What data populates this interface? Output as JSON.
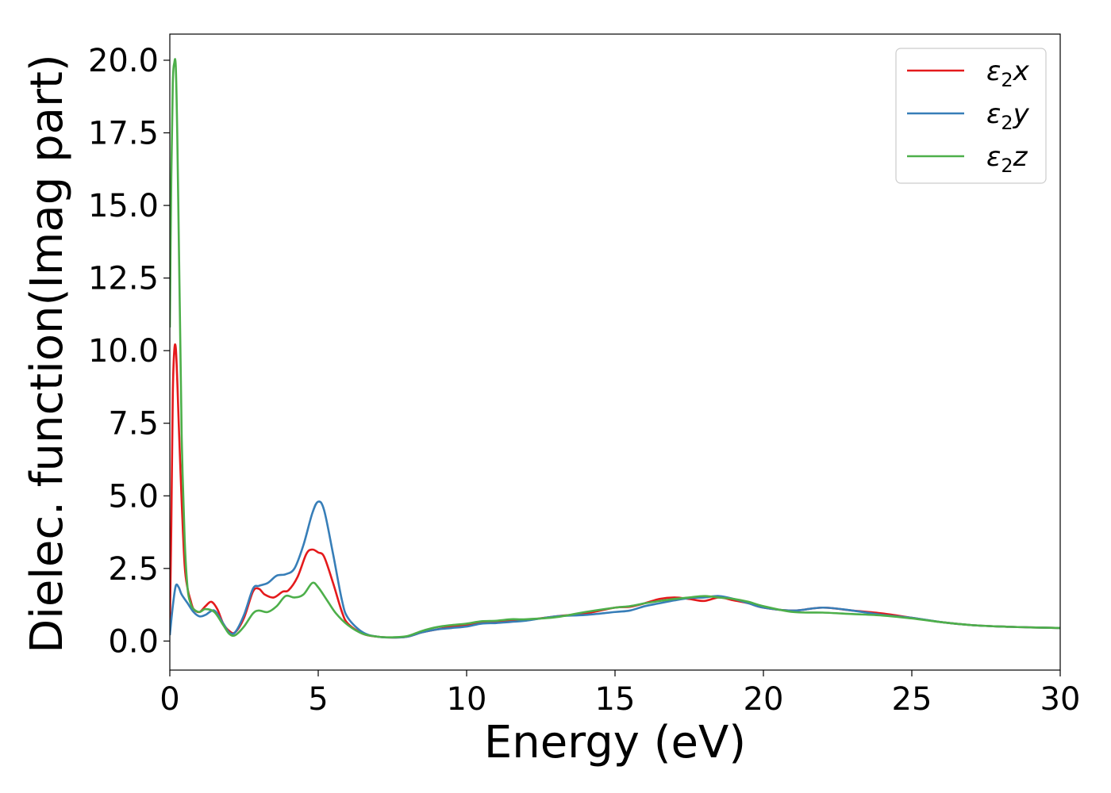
{
  "chart_data": {
    "type": "line",
    "title": "",
    "xlabel": "Energy (eV)",
    "ylabel": "Dielec. function(Imag part)",
    "xlim": [
      0,
      30
    ],
    "ylim": [
      -1.0,
      20.9
    ],
    "x_ticks": [
      0,
      5,
      10,
      15,
      20,
      25,
      30
    ],
    "x_tick_labels": [
      "0",
      "5",
      "10",
      "15",
      "20",
      "25",
      "30"
    ],
    "y_ticks": [
      0.0,
      2.5,
      5.0,
      7.5,
      10.0,
      12.5,
      15.0,
      17.5,
      20.0
    ],
    "y_tick_labels": [
      "0.0",
      "2.5",
      "5.0",
      "7.5",
      "10.0",
      "12.5",
      "15.0",
      "17.5",
      "20.0"
    ],
    "grid": false,
    "legend_position": "top-right",
    "series": [
      {
        "name": "ε₂x",
        "color": "#e41a1c",
        "x": [
          0,
          0.05,
          0.1,
          0.15,
          0.2,
          0.25,
          0.3,
          0.4,
          0.5,
          0.6,
          0.7,
          0.8,
          1.0,
          1.2,
          1.4,
          1.6,
          1.8,
          2.0,
          2.2,
          2.5,
          2.8,
          3.0,
          3.2,
          3.5,
          3.8,
          4.0,
          4.3,
          4.6,
          4.8,
          5.0,
          5.2,
          5.5,
          5.8,
          6.0,
          6.5,
          7.0,
          7.5,
          8.0,
          8.5,
          9.0,
          9.5,
          10.0,
          10.5,
          11.0,
          11.5,
          12.0,
          13.0,
          14.0,
          15.0,
          15.5,
          16.0,
          16.5,
          17.0,
          17.5,
          18.0,
          18.5,
          19.0,
          19.5,
          20.0,
          21.0,
          22.0,
          23.0,
          24.0,
          25.0,
          26.0,
          27.0,
          28.0,
          29.0,
          30.0
        ],
        "y": [
          0.5,
          4.0,
          8.5,
          10.0,
          10.1,
          9.0,
          7.5,
          4.8,
          2.6,
          1.8,
          1.4,
          1.1,
          1.0,
          1.2,
          1.35,
          1.1,
          0.6,
          0.35,
          0.3,
          0.8,
          1.7,
          1.8,
          1.6,
          1.5,
          1.7,
          1.75,
          2.2,
          3.0,
          3.15,
          3.05,
          2.9,
          2.0,
          1.0,
          0.6,
          0.25,
          0.15,
          0.12,
          0.15,
          0.3,
          0.4,
          0.5,
          0.55,
          0.62,
          0.65,
          0.7,
          0.72,
          0.85,
          0.95,
          1.15,
          1.18,
          1.3,
          1.45,
          1.5,
          1.45,
          1.38,
          1.5,
          1.4,
          1.3,
          1.15,
          1.05,
          1.15,
          1.05,
          0.95,
          0.8,
          0.65,
          0.55,
          0.5,
          0.47,
          0.45
        ]
      },
      {
        "name": "ε₂y",
        "color": "#377eb8",
        "x": [
          0,
          0.1,
          0.2,
          0.3,
          0.4,
          0.6,
          0.8,
          1.0,
          1.2,
          1.5,
          1.8,
          2.0,
          2.2,
          2.5,
          2.8,
          3.0,
          3.3,
          3.6,
          3.9,
          4.2,
          4.5,
          4.8,
          5.0,
          5.2,
          5.5,
          5.8,
          6.0,
          6.5,
          7.0,
          7.5,
          8.0,
          8.5,
          9.0,
          9.5,
          10.0,
          10.5,
          11.0,
          11.5,
          12.0,
          13.0,
          14.0,
          15.0,
          15.5,
          16.0,
          16.5,
          17.0,
          17.5,
          18.0,
          18.5,
          19.0,
          19.5,
          20.0,
          21.0,
          22.0,
          23.0,
          24.0,
          25.0,
          26.0,
          27.0,
          28.0,
          29.0,
          30.0
        ],
        "y": [
          0.2,
          1.2,
          1.9,
          1.85,
          1.6,
          1.3,
          1.0,
          0.85,
          0.9,
          1.05,
          0.6,
          0.3,
          0.3,
          0.9,
          1.8,
          1.9,
          2.0,
          2.25,
          2.3,
          2.5,
          3.3,
          4.4,
          4.8,
          4.5,
          3.0,
          1.4,
          0.8,
          0.3,
          0.15,
          0.12,
          0.15,
          0.3,
          0.4,
          0.45,
          0.5,
          0.6,
          0.62,
          0.66,
          0.7,
          0.85,
          0.9,
          1.0,
          1.05,
          1.2,
          1.3,
          1.4,
          1.48,
          1.5,
          1.55,
          1.45,
          1.3,
          1.15,
          1.05,
          1.15,
          1.05,
          0.9,
          0.8,
          0.65,
          0.55,
          0.5,
          0.47,
          0.45
        ]
      },
      {
        "name": "ε₂z",
        "color": "#4daf4a",
        "x": [
          0,
          0.05,
          0.1,
          0.15,
          0.2,
          0.25,
          0.3,
          0.35,
          0.4,
          0.5,
          0.6,
          0.7,
          0.8,
          1.0,
          1.2,
          1.5,
          1.8,
          2.0,
          2.2,
          2.5,
          2.8,
          3.0,
          3.3,
          3.6,
          3.9,
          4.2,
          4.5,
          4.8,
          5.0,
          5.3,
          5.6,
          6.0,
          6.5,
          7.0,
          7.5,
          8.0,
          8.5,
          9.0,
          9.5,
          10.0,
          10.5,
          11.0,
          11.5,
          12.0,
          13.0,
          14.0,
          15.0,
          15.5,
          16.0,
          16.5,
          17.0,
          17.5,
          18.0,
          18.5,
          19.0,
          19.5,
          20.0,
          21.0,
          22.0,
          23.0,
          24.0,
          25.0,
          26.0,
          27.0,
          28.0,
          29.0,
          30.0
        ],
        "y": [
          10.8,
          16.0,
          19.2,
          19.9,
          19.8,
          17.5,
          14.0,
          10.5,
          7.0,
          3.5,
          1.8,
          1.3,
          1.1,
          1.0,
          1.1,
          1.0,
          0.55,
          0.25,
          0.2,
          0.5,
          0.95,
          1.05,
          1.0,
          1.2,
          1.55,
          1.5,
          1.6,
          2.0,
          1.85,
          1.4,
          0.95,
          0.55,
          0.25,
          0.15,
          0.13,
          0.17,
          0.35,
          0.48,
          0.55,
          0.6,
          0.68,
          0.7,
          0.75,
          0.75,
          0.82,
          1.0,
          1.15,
          1.2,
          1.3,
          1.38,
          1.45,
          1.5,
          1.55,
          1.5,
          1.45,
          1.35,
          1.2,
          1.0,
          0.98,
          0.93,
          0.88,
          0.78,
          0.65,
          0.55,
          0.5,
          0.47,
          0.45
        ]
      }
    ],
    "legend": {
      "entries": [
        {
          "symbol": "ε",
          "sub": "2",
          "var": "x",
          "color": "#e41a1c"
        },
        {
          "symbol": "ε",
          "sub": "2",
          "var": "y",
          "color": "#377eb8"
        },
        {
          "symbol": "ε",
          "sub": "2",
          "var": "z",
          "color": "#4daf4a"
        }
      ]
    }
  }
}
